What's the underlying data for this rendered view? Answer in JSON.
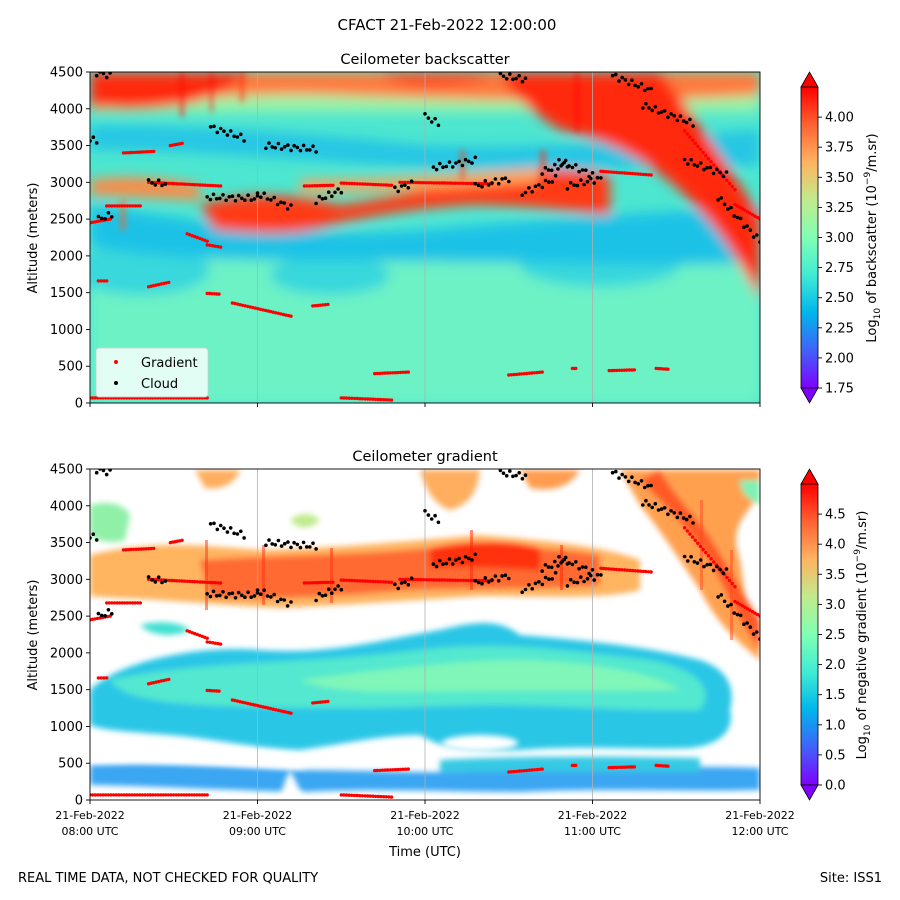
{
  "figure": {
    "suptitle": "CFACT 21-Feb-2022 12:00:00",
    "footer_left": "REAL TIME DATA, NOT CHECKED FOR QUALITY",
    "footer_right": "Site: ISS1"
  },
  "colormap": [
    "#8000ff",
    "#4062fa",
    "#00b5eb",
    "#40ecd4",
    "#80ffb4",
    "#c0eb8d",
    "#ffb360",
    "#ff6232",
    "#ff0000"
  ],
  "chart_data": [
    {
      "type": "heatmap",
      "title": "Ceilometer backscatter",
      "xlabel": "",
      "ylabel": "Altitude (meters)",
      "xlim": [
        8.0,
        12.0
      ],
      "ylim": [
        0,
        4500
      ],
      "yticks": [
        0,
        500,
        1000,
        1500,
        2000,
        2500,
        3000,
        3500,
        4000,
        4500
      ],
      "xticks": [
        8,
        9,
        10,
        11,
        12
      ],
      "xtick_labels": [],
      "colorbar": {
        "label_parts": [
          "Log",
          "10",
          " of backscatter (10",
          "−9",
          "/m.sr)"
        ],
        "range": [
          1.75,
          4.25
        ],
        "ticks": [
          "1.75",
          "2.00",
          "2.25",
          "2.50",
          "2.75",
          "3.00",
          "3.25",
          "3.50",
          "3.75",
          "4.00"
        ]
      },
      "legend": {
        "location": "lower-left",
        "entries": [
          "Gradient",
          "Cloud"
        ]
      }
    },
    {
      "type": "heatmap",
      "title": "Ceilometer gradient",
      "xlabel": "Time (UTC)",
      "ylabel": "Altitude (meters)",
      "xlim": [
        8.0,
        12.0
      ],
      "ylim": [
        0,
        4500
      ],
      "yticks": [
        0,
        500,
        1000,
        1500,
        2000,
        2500,
        3000,
        3500,
        4000,
        4500
      ],
      "xticks": [
        8,
        9,
        10,
        11,
        12
      ],
      "xtick_labels": [
        [
          "21-Feb-2022",
          "08:00 UTC"
        ],
        [
          "21-Feb-2022",
          "09:00 UTC"
        ],
        [
          "21-Feb-2022",
          "10:00 UTC"
        ],
        [
          "21-Feb-2022",
          "11:00 UTC"
        ],
        [
          "21-Feb-2022",
          "12:00 UTC"
        ]
      ],
      "colorbar": {
        "label_parts": [
          "Log",
          "10",
          " of negative gradient (10",
          "−9",
          "/m.sr)"
        ],
        "range": [
          0.0,
          5.0
        ],
        "ticks": [
          "0.0",
          "0.5",
          "1.0",
          "1.5",
          "2.0",
          "2.5",
          "3.0",
          "3.5",
          "4.0",
          "4.5"
        ]
      }
    }
  ],
  "gradient_points": {
    "name": "Gradient",
    "color": "#ff0000",
    "segments": [
      {
        "t": [
          8.0,
          8.36
        ],
        "alt": [
          70,
          70
        ]
      },
      {
        "t": [
          8.36,
          8.7
        ],
        "alt": [
          70,
          70
        ]
      },
      {
        "t": [
          8.0,
          8.12
        ],
        "alt": [
          2450,
          2500
        ]
      },
      {
        "t": [
          8.1,
          8.3
        ],
        "alt": [
          2680,
          2680
        ]
      },
      {
        "t": [
          8.2,
          8.38
        ],
        "alt": [
          3400,
          3420
        ]
      },
      {
        "t": [
          8.48,
          8.55
        ],
        "alt": [
          3500,
          3530
        ]
      },
      {
        "t": [
          8.35,
          8.78
        ],
        "alt": [
          3000,
          2950
        ]
      },
      {
        "t": [
          8.58,
          8.7
        ],
        "alt": [
          2300,
          2200
        ]
      },
      {
        "t": [
          8.7,
          8.78
        ],
        "alt": [
          2150,
          2120
        ]
      },
      {
        "t": [
          8.35,
          8.47
        ],
        "alt": [
          1580,
          1640
        ]
      },
      {
        "t": [
          8.05,
          8.1
        ],
        "alt": [
          1660,
          1660
        ]
      },
      {
        "t": [
          8.7,
          8.77
        ],
        "alt": [
          1490,
          1480
        ]
      },
      {
        "t": [
          8.85,
          9.2
        ],
        "alt": [
          1360,
          1180
        ]
      },
      {
        "t": [
          9.33,
          9.42
        ],
        "alt": [
          1320,
          1340
        ]
      },
      {
        "t": [
          9.5,
          9.8
        ],
        "alt": [
          70,
          40
        ]
      },
      {
        "t": [
          9.7,
          9.9
        ],
        "alt": [
          400,
          420
        ]
      },
      {
        "t": [
          9.28,
          9.45
        ],
        "alt": [
          2950,
          2960
        ]
      },
      {
        "t": [
          9.5,
          9.8
        ],
        "alt": [
          2990,
          2960
        ]
      },
      {
        "t": [
          9.85,
          10.4
        ],
        "alt": [
          3000,
          2980
        ]
      },
      {
        "t": [
          10.5,
          10.7
        ],
        "alt": [
          380,
          420
        ]
      },
      {
        "t": [
          10.88,
          10.9
        ],
        "alt": [
          470,
          470
        ]
      },
      {
        "t": [
          11.1,
          11.25
        ],
        "alt": [
          440,
          450
        ]
      },
      {
        "t": [
          11.38,
          11.45
        ],
        "alt": [
          470,
          460
        ]
      },
      {
        "t": [
          11.05,
          11.35
        ],
        "alt": [
          3150,
          3100
        ]
      },
      {
        "t": [
          11.55,
          11.85
        ],
        "alt": [
          3700,
          2900
        ]
      },
      {
        "t": [
          11.85,
          12.0
        ],
        "alt": [
          2700,
          2500
        ]
      }
    ]
  },
  "cloud_points": {
    "name": "Cloud",
    "color": "#000000",
    "segments": [
      {
        "t": [
          8.0,
          8.04
        ],
        "alt": [
          3600,
          3550
        ]
      },
      {
        "t": [
          8.05,
          8.13
        ],
        "alt": [
          2500,
          2560
        ]
      },
      {
        "t": [
          8.02,
          8.12
        ],
        "alt": [
          4500,
          4450
        ]
      },
      {
        "t": [
          8.35,
          8.45
        ],
        "alt": [
          3000,
          2980
        ]
      },
      {
        "t": [
          8.72,
          8.92
        ],
        "alt": [
          3750,
          3600
        ]
      },
      {
        "t": [
          8.7,
          9.0
        ],
        "alt": [
          2800,
          2780
        ]
      },
      {
        "t": [
          9.0,
          9.2
        ],
        "alt": [
          2850,
          2660
        ]
      },
      {
        "t": [
          9.05,
          9.35
        ],
        "alt": [
          3500,
          3450
        ]
      },
      {
        "t": [
          9.35,
          9.5
        ],
        "alt": [
          2750,
          2900
        ]
      },
      {
        "t": [
          9.82,
          9.92
        ],
        "alt": [
          2900,
          2980
        ]
      },
      {
        "t": [
          10.0,
          10.08
        ],
        "alt": [
          3900,
          3800
        ]
      },
      {
        "t": [
          10.05,
          10.3
        ],
        "alt": [
          3200,
          3300
        ]
      },
      {
        "t": [
          10.3,
          10.5
        ],
        "alt": [
          2950,
          3050
        ]
      },
      {
        "t": [
          10.45,
          10.6
        ],
        "alt": [
          4450,
          4400
        ]
      },
      {
        "t": [
          10.58,
          10.78
        ],
        "alt": [
          2850,
          3050
        ]
      },
      {
        "t": [
          10.7,
          10.85
        ],
        "alt": [
          3150,
          3250
        ]
      },
      {
        "t": [
          10.8,
          11.0
        ],
        "alt": [
          3300,
          3100
        ]
      },
      {
        "t": [
          10.85,
          11.05
        ],
        "alt": [
          2950,
          3050
        ]
      },
      {
        "t": [
          11.12,
          11.35
        ],
        "alt": [
          4450,
          4250
        ]
      },
      {
        "t": [
          11.3,
          11.6
        ],
        "alt": [
          4050,
          3800
        ]
      },
      {
        "t": [
          11.55,
          11.8
        ],
        "alt": [
          3300,
          3100
        ]
      },
      {
        "t": [
          11.75,
          12.0
        ],
        "alt": [
          2800,
          2200
        ]
      }
    ]
  }
}
